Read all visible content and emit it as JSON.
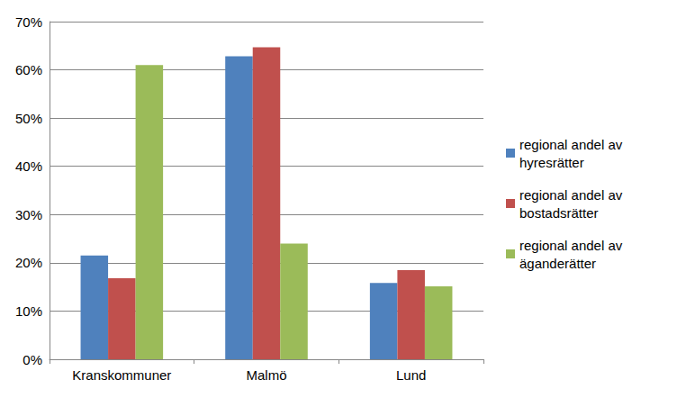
{
  "chart_data": {
    "type": "bar",
    "categories": [
      "Kranskommuner",
      "Malmö",
      "Lund"
    ],
    "series": [
      {
        "name": "regional andel av hyresrätter",
        "color": "#4f81bd",
        "values": [
          21.5,
          62.8,
          15.8
        ]
      },
      {
        "name": "regional andel av bostadsrätter",
        "color": "#c0504d",
        "values": [
          16.8,
          64.7,
          18.5
        ]
      },
      {
        "name": "regional andel av äganderätter",
        "color": "#9bbb59",
        "values": [
          61,
          24,
          15.1
        ]
      }
    ],
    "ylim": [
      0,
      70
    ],
    "yticks": [
      {
        "value": 0,
        "label": "0%"
      },
      {
        "value": 10,
        "label": "10%"
      },
      {
        "value": 20,
        "label": "20%"
      },
      {
        "value": 30,
        "label": "30%"
      },
      {
        "value": 40,
        "label": "40%"
      },
      {
        "value": 50,
        "label": "50%"
      },
      {
        "value": 60,
        "label": "60%"
      },
      {
        "value": 70,
        "label": "70%"
      }
    ],
    "grid": true,
    "legend": "right"
  }
}
